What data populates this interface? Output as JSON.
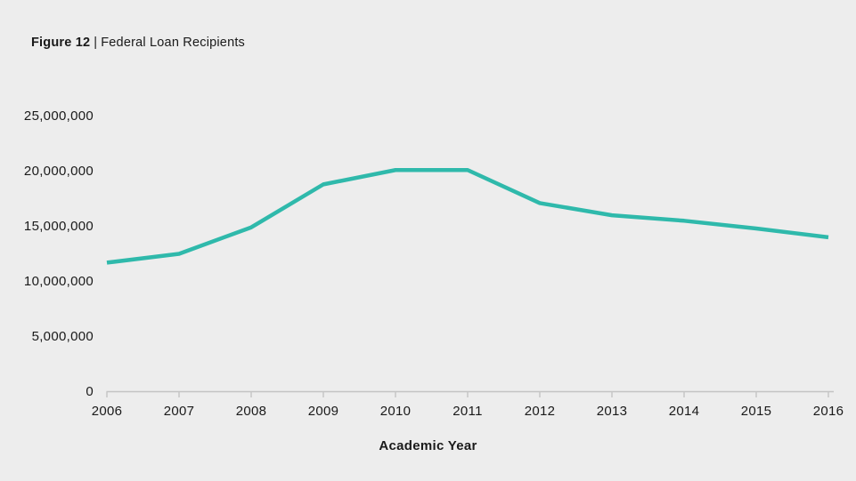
{
  "header": {
    "figure_label": "Figure 12",
    "separator": "|",
    "title": "Federal Loan Recipients"
  },
  "chart_data": {
    "type": "line",
    "title": "Figure 12 | Federal Loan Recipients",
    "xlabel": "Academic Year",
    "ylabel": "",
    "categories": [
      2006,
      2007,
      2008,
      2009,
      2010,
      2011,
      2012,
      2013,
      2014,
      2015,
      2016
    ],
    "series": [
      {
        "name": "Federal Loan Recipients",
        "values": [
          11700000,
          12500000,
          14900000,
          18800000,
          20100000,
          20100000,
          17100000,
          16000000,
          15500000,
          14800000,
          14000000
        ]
      }
    ],
    "y_ticks": [
      {
        "value": 0,
        "label": "0"
      },
      {
        "value": 5000000,
        "label": "5,000,000"
      },
      {
        "value": 10000000,
        "label": "10,000,000"
      },
      {
        "value": 15000000,
        "label": "15,000,000"
      },
      {
        "value": 20000000,
        "label": "20,000,000"
      },
      {
        "value": 25000000,
        "label": "25,000,000"
      }
    ],
    "ylim": [
      0,
      25000000
    ],
    "grid": false,
    "legend": "none",
    "colors": {
      "line": "#2FB9AB",
      "axis": "#C4C4C4",
      "text": "#1A1A1A",
      "background": "#EDEDED"
    }
  }
}
